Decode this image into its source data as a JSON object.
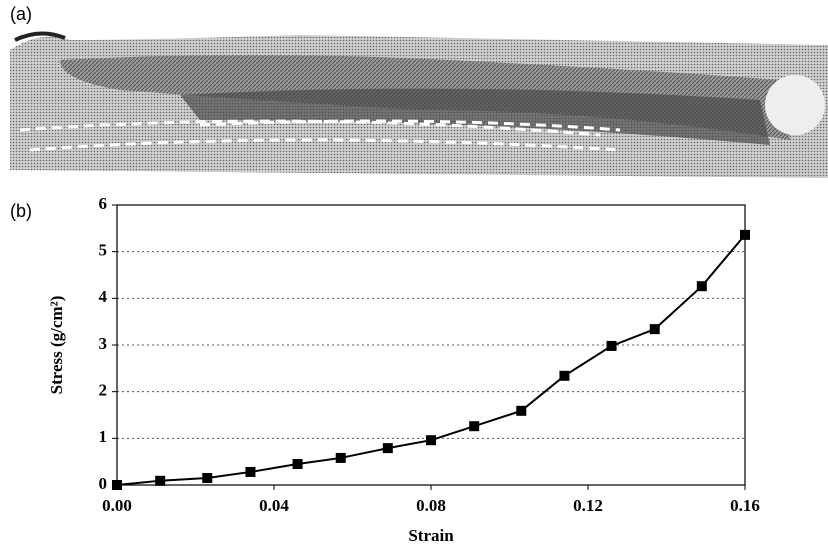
{
  "panel_labels": [
    "(a)",
    "(b)"
  ],
  "chart_data": {
    "type": "line",
    "xlabel": "Strain",
    "ylabel": "Stress (g/cm²)",
    "x": [
      0,
      0.011,
      0.023,
      0.034,
      0.046,
      0.057,
      0.069,
      0.08,
      0.091,
      0.103,
      0.114,
      0.126,
      0.137,
      0.149,
      0.16
    ],
    "values": [
      0,
      0.09,
      0.15,
      0.28,
      0.45,
      0.58,
      0.79,
      0.96,
      1.26,
      1.59,
      2.34,
      2.98,
      3.34,
      4.26,
      5.36
    ],
    "color": "#000000",
    "marker": "square",
    "xlim": [
      0,
      0.16
    ],
    "xticks": [
      {
        "value": 0,
        "label": "0.00"
      },
      0.04,
      0.08,
      0.12,
      0.16
    ],
    "ylim": [
      0,
      6
    ],
    "yticks": [
      0,
      1,
      2,
      3,
      4,
      5,
      6
    ],
    "grid": true
  }
}
